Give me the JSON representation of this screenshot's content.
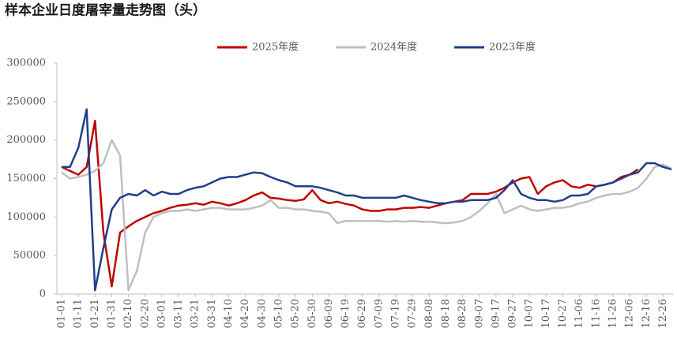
{
  "chart_data": {
    "type": "line",
    "title": "样本企业日度屠宰量走势图（头）",
    "categories": [
      "01-01",
      null,
      "01-11",
      null,
      "01-21",
      null,
      "01-31",
      null,
      "02-10",
      null,
      "02-20",
      null,
      "03-01",
      null,
      "03-11",
      null,
      "03-21",
      null,
      "03-31",
      null,
      "04-10",
      null,
      "04-20",
      null,
      "04-30",
      null,
      "05-10",
      null,
      "05-20",
      null,
      "05-30",
      null,
      "06-09",
      null,
      "06-19",
      null,
      "06-29",
      null,
      "07-09",
      null,
      "07-19",
      null,
      "07-29",
      null,
      "08-08",
      null,
      "08-18",
      null,
      "08-28",
      null,
      "09-07",
      null,
      "09-17",
      null,
      "09-27",
      null,
      "10-07",
      null,
      "10-17",
      null,
      "10-27",
      null,
      "11-06",
      null,
      "11-16",
      null,
      "11-26",
      null,
      "12-06",
      null,
      "12-16",
      null,
      "12-26",
      null
    ],
    "series": [
      {
        "name": "2025年度",
        "color": "#c00000",
        "values": [
          165000,
          160000,
          155000,
          165000,
          225000,
          80000,
          10000,
          80000,
          88000,
          95000,
          100000,
          105000,
          108000,
          112000,
          115000,
          116000,
          118000,
          116000,
          120000,
          118000,
          115000,
          118000,
          122000,
          128000,
          132000,
          125000,
          124000,
          122000,
          121000,
          123000,
          135000,
          122000,
          118000,
          120000,
          117000,
          115000,
          110000,
          108000,
          108000,
          110000,
          110000,
          112000,
          112000,
          113000,
          112000,
          115000,
          118000,
          120000,
          122000,
          130000,
          130000,
          130000,
          133000,
          138000,
          145000,
          150000,
          152000,
          130000,
          140000,
          145000,
          148000,
          140000,
          138000,
          142000,
          140000,
          142000,
          145000,
          152000,
          155000,
          162000,
          null,
          null,
          null,
          null
        ]
      },
      {
        "name": "2024年度",
        "color": "#bfbfbf",
        "values": [
          158000,
          150000,
          152000,
          155000,
          160000,
          170000,
          200000,
          180000,
          5000,
          30000,
          80000,
          100000,
          105000,
          108000,
          108000,
          110000,
          108000,
          110000,
          112000,
          112000,
          110000,
          110000,
          110000,
          112000,
          115000,
          122000,
          112000,
          112000,
          110000,
          110000,
          108000,
          107000,
          105000,
          92000,
          95000,
          95000,
          95000,
          95000,
          95000,
          94000,
          95000,
          94000,
          95000,
          94000,
          94000,
          93000,
          92000,
          93000,
          95000,
          100000,
          108000,
          118000,
          130000,
          105000,
          110000,
          115000,
          110000,
          108000,
          110000,
          112000,
          112000,
          114000,
          118000,
          120000,
          125000,
          128000,
          130000,
          130000,
          133000,
          138000,
          150000,
          165000,
          168000,
          163000
        ]
      },
      {
        "name": "2023年度",
        "color": "#1f3f8a",
        "values": [
          165000,
          165000,
          190000,
          240000,
          5000,
          60000,
          110000,
          125000,
          130000,
          128000,
          135000,
          128000,
          133000,
          130000,
          130000,
          135000,
          138000,
          140000,
          145000,
          150000,
          152000,
          152000,
          155000,
          158000,
          157000,
          152000,
          148000,
          145000,
          140000,
          140000,
          140000,
          138000,
          135000,
          132000,
          128000,
          128000,
          125000,
          125000,
          125000,
          125000,
          125000,
          128000,
          125000,
          122000,
          120000,
          118000,
          118000,
          120000,
          120000,
          122000,
          122000,
          122000,
          125000,
          135000,
          148000,
          130000,
          125000,
          122000,
          122000,
          120000,
          122000,
          128000,
          128000,
          130000,
          140000,
          142000,
          145000,
          150000,
          155000,
          158000,
          170000,
          170000,
          165000,
          162000
        ]
      }
    ],
    "ylim": [
      0,
      300000
    ],
    "yticks": [
      0,
      50000,
      100000,
      150000,
      200000,
      250000,
      300000
    ],
    "grid": false
  }
}
